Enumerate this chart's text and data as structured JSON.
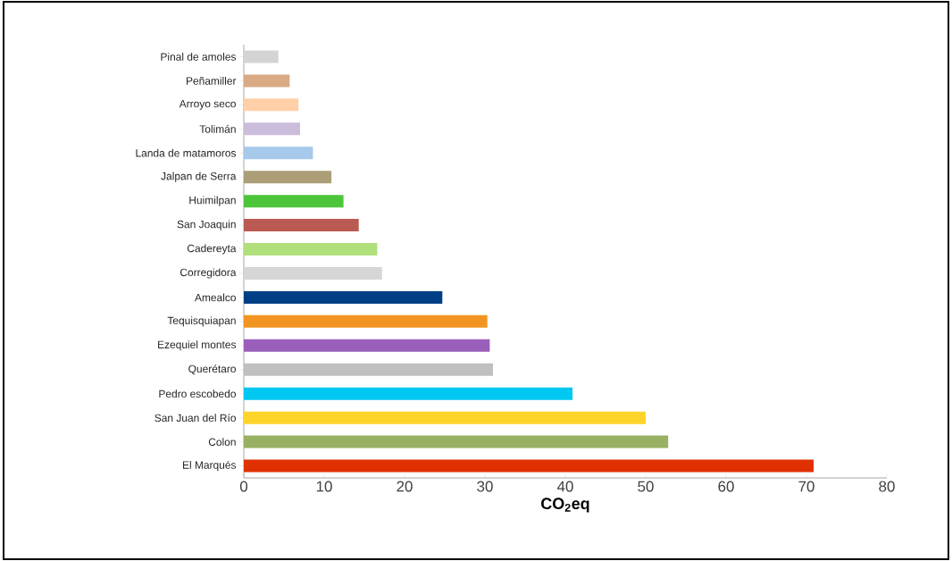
{
  "chart_data": {
    "type": "bar",
    "orientation": "horizontal",
    "xlabel": "CO$_{2}$eq",
    "categories": [
      "Pinal de amoles",
      "Peñamiller",
      "Arroyo seco",
      "Tolimán",
      "Landa de matamoros",
      "Jalpan de Serra",
      "Huimilpan",
      "San Joaquin",
      "Cadereyta",
      "Corregidora",
      "Amealco",
      "Tequisquiapan",
      "Ezequiel montes",
      "Querétaro",
      "Pedro escobedo",
      "San Juan del Río",
      "Colon",
      "El Marqués"
    ],
    "values": [
      4.3,
      5.7,
      6.8,
      7.0,
      8.6,
      10.9,
      12.4,
      14.3,
      16.6,
      17.2,
      24.7,
      30.3,
      30.6,
      31.0,
      40.9,
      50.0,
      52.8,
      70.9
    ],
    "colors": [
      "#d4d4d4",
      "#d9aa84",
      "#ffcfa8",
      "#cbbcdc",
      "#a6c9ec",
      "#ac9f78",
      "#4dc53a",
      "#bb5a52",
      "#b0e07c",
      "#d6d6d6",
      "#003f86",
      "#f29421",
      "#9a5fba",
      "#c0c0c0",
      "#00c8f0",
      "#ffd42a",
      "#97b062",
      "#e03000"
    ],
    "xlim": [
      0,
      80
    ],
    "xticks": [
      0,
      10,
      20,
      30,
      40,
      50,
      60,
      70,
      80
    ],
    "grid": false
  }
}
